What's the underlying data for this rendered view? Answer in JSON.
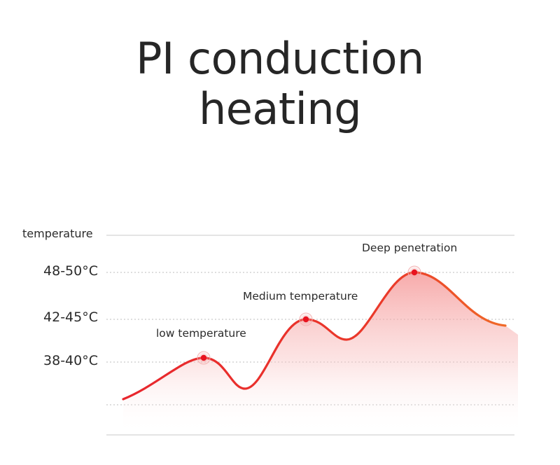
{
  "title": {
    "line1": "PI conduction",
    "line2": "heating"
  },
  "chart_data": {
    "type": "area",
    "title": "PI conduction heating",
    "ylabel": "temperature",
    "y_ticks": [
      "48-50°C",
      "42-45°C",
      "38-40°C"
    ],
    "curve_color": "#e8262d",
    "curve_color_end": "#f06a28",
    "fill_color": "#f7a6a6",
    "grid": "dashed horizontal",
    "peaks": [
      {
        "label": "low temperature",
        "level": "38-40°C"
      },
      {
        "label": "Medium temperature",
        "level": "42-45°C"
      },
      {
        "label": "Deep penetration",
        "level": "48-50°C"
      }
    ]
  }
}
